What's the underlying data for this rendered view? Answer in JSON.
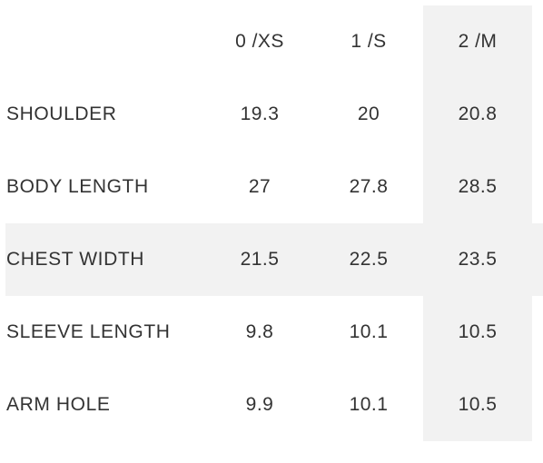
{
  "columns": [
    "0 /XS",
    "1 /S",
    "2 /M"
  ],
  "rows": [
    {
      "label": "SHOULDER",
      "values": [
        "19.3",
        "20",
        "20.8"
      ]
    },
    {
      "label": "BODY LENGTH",
      "values": [
        "27",
        "27.8",
        "28.5"
      ]
    },
    {
      "label": "CHEST WIDTH",
      "values": [
        "21.5",
        "22.5",
        "23.5"
      ]
    },
    {
      "label": "SLEEVE LENGTH",
      "values": [
        "9.8",
        "10.1",
        "10.5"
      ]
    },
    {
      "label": "ARM HOLE",
      "values": [
        "9.9",
        "10.1",
        "10.5"
      ]
    }
  ],
  "highlight_color": "#f2f2f2",
  "text_color": "#333333"
}
